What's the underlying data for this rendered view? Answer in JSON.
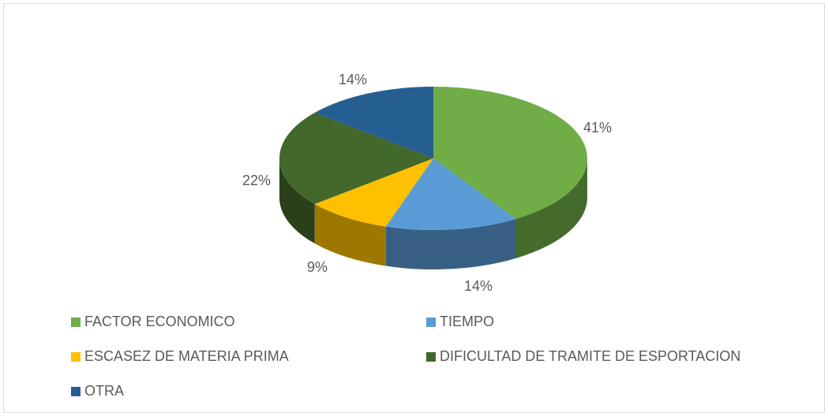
{
  "chart_data": {
    "type": "pie",
    "categories": [
      "FACTOR ECONOMICO",
      "TIEMPO",
      "ESCASEZ DE MATERIA PRIMA",
      "DIFICULTAD DE TRAMITE DE ESPORTACION",
      "OTRA"
    ],
    "values": [
      41,
      14,
      9,
      22,
      14
    ],
    "value_labels": [
      "41%",
      "14%",
      "9%",
      "22%",
      "14%"
    ],
    "colors": [
      "#70ad47",
      "#5b9bd5",
      "#ffc000",
      "#43682b",
      "#255e91"
    ],
    "legend": "bottom"
  }
}
